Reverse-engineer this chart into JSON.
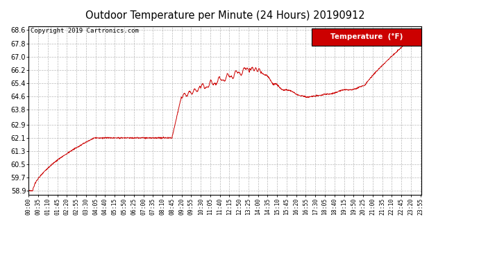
{
  "title": "Outdoor Temperature per Minute (24 Hours) 20190912",
  "copyright": "Copyright 2019 Cartronics.com",
  "legend_label": "Temperature  (°F)",
  "line_color": "#cc0000",
  "legend_bg": "#cc0000",
  "legend_fg": "#ffffff",
  "background_color": "#ffffff",
  "grid_color": "#b0b0b0",
  "y_ticks": [
    58.9,
    59.7,
    60.5,
    61.3,
    62.1,
    62.9,
    63.8,
    64.6,
    65.4,
    66.2,
    67.0,
    67.8,
    68.6
  ],
  "ylim": [
    58.65,
    68.85
  ],
  "x_tick_interval_minutes": 35,
  "total_minutes": 1440
}
